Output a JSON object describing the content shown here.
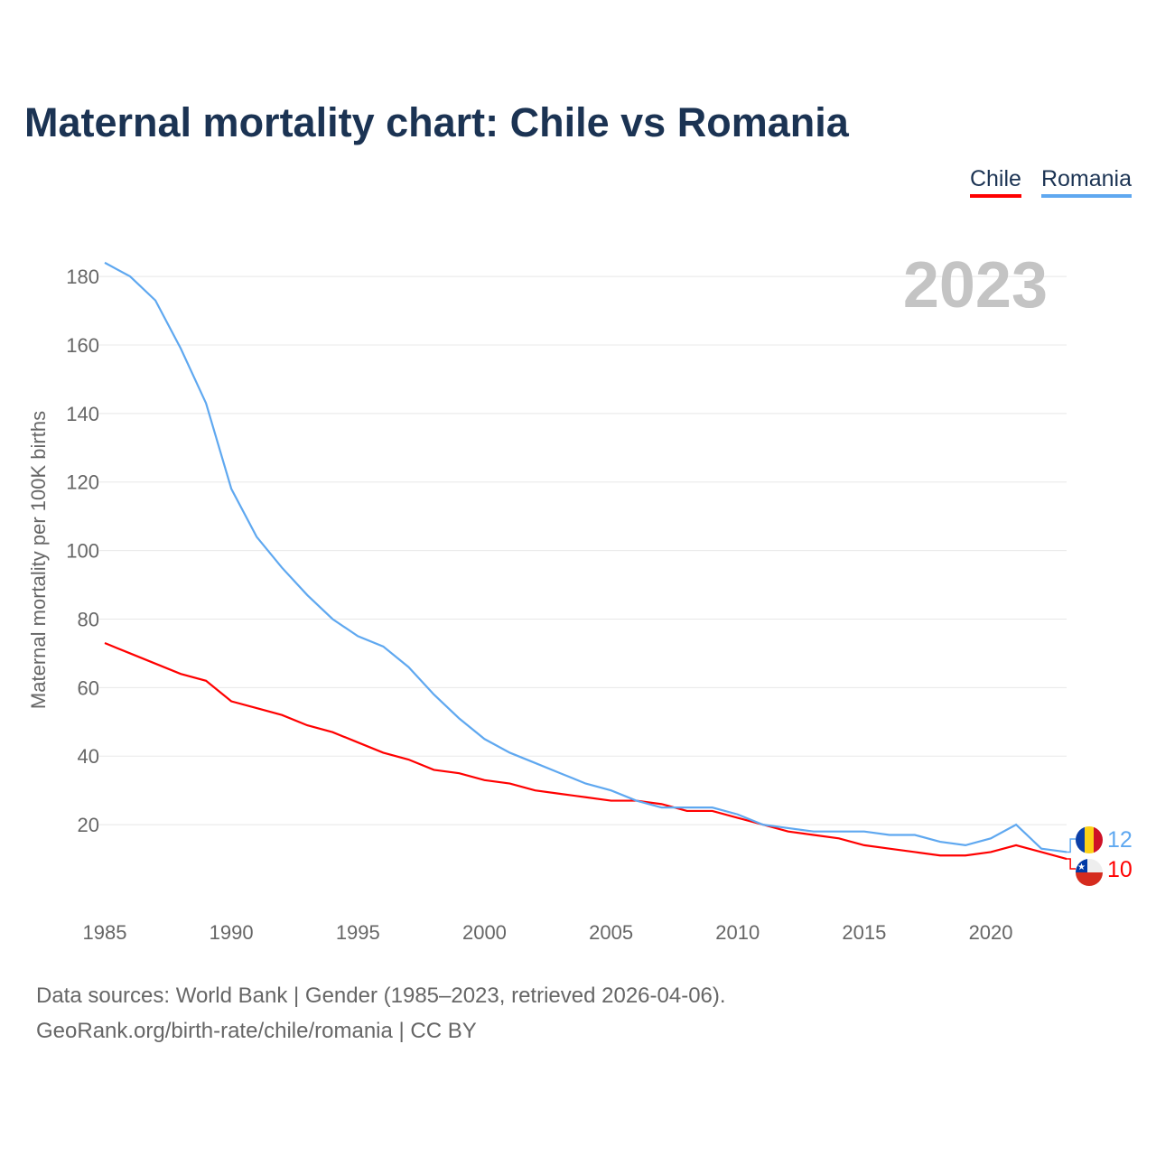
{
  "title": "Maternal mortality chart: Chile vs Romania",
  "legend": [
    "Chile",
    "Romania"
  ],
  "footer": {
    "line1": "Data sources: World Bank | Gender (1985–2023, retrieved 2026-04-06).",
    "line2": "GeoRank.org/birth-rate/chile/romania | CC BY"
  },
  "chart_data": {
    "type": "line",
    "title": "Maternal mortality chart: Chile vs Romania",
    "ylabel": "Maternal mortality per 100K births",
    "xlabel": "",
    "year_label": "2023",
    "x": [
      1985,
      1986,
      1987,
      1988,
      1989,
      1990,
      1991,
      1992,
      1993,
      1994,
      1995,
      1996,
      1997,
      1998,
      1999,
      2000,
      2001,
      2002,
      2003,
      2004,
      2005,
      2006,
      2007,
      2008,
      2009,
      2010,
      2011,
      2012,
      2013,
      2014,
      2015,
      2016,
      2017,
      2018,
      2019,
      2020,
      2021,
      2022,
      2023
    ],
    "xticks": [
      1985,
      1990,
      1995,
      2000,
      2005,
      2010,
      2015,
      2020
    ],
    "yticks": [
      20,
      40,
      60,
      80,
      100,
      120,
      140,
      160,
      180
    ],
    "ylim": [
      0,
      190
    ],
    "grid": true,
    "legend_position": "top-right",
    "series": [
      {
        "name": "Chile",
        "color": "#ff0000",
        "end_label": "10",
        "values": [
          73,
          70,
          67,
          64,
          62,
          56,
          54,
          52,
          49,
          47,
          44,
          41,
          39,
          36,
          35,
          33,
          32,
          30,
          29,
          28,
          27,
          27,
          26,
          24,
          24,
          22,
          20,
          18,
          17,
          16,
          14,
          13,
          12,
          11,
          11,
          12,
          14,
          12,
          10
        ]
      },
      {
        "name": "Romania",
        "color": "#5fa8f0",
        "end_label": "12",
        "values": [
          184,
          180,
          173,
          159,
          143,
          118,
          104,
          95,
          87,
          80,
          75,
          72,
          66,
          58,
          51,
          45,
          41,
          38,
          35,
          32,
          30,
          27,
          25,
          25,
          25,
          23,
          20,
          19,
          18,
          18,
          18,
          17,
          17,
          15,
          14,
          16,
          20,
          13,
          12
        ]
      }
    ]
  }
}
